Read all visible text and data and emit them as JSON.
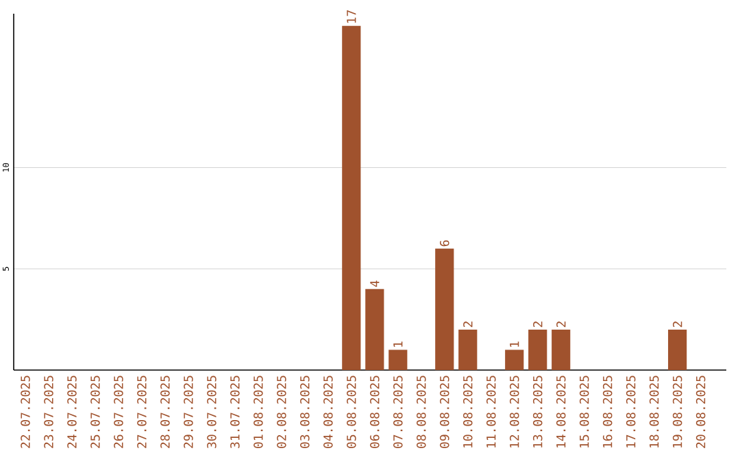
{
  "chart_data": {
    "type": "bar",
    "categories": [
      "22.07.2025",
      "23.07.2025",
      "24.07.2025",
      "25.07.2025",
      "26.07.2025",
      "27.07.2025",
      "28.07.2025",
      "29.07.2025",
      "30.07.2025",
      "31.07.2025",
      "01.08.2025",
      "02.08.2025",
      "03.08.2025",
      "04.08.2025",
      "05.08.2025",
      "06.08.2025",
      "07.08.2025",
      "08.08.2025",
      "09.08.2025",
      "10.08.2025",
      "11.08.2025",
      "12.08.2025",
      "13.08.2025",
      "14.08.2025",
      "15.08.2025",
      "16.08.2025",
      "17.08.2025",
      "18.08.2025",
      "19.08.2025",
      "20.08.2025"
    ],
    "values": [
      0,
      0,
      0,
      0,
      0,
      0,
      0,
      0,
      0,
      0,
      0,
      0,
      0,
      0,
      17,
      4,
      1,
      0,
      6,
      2,
      0,
      1,
      2,
      2,
      0,
      0,
      0,
      0,
      2,
      0
    ],
    "value_labels": [
      null,
      null,
      null,
      null,
      null,
      null,
      null,
      null,
      null,
      null,
      null,
      null,
      null,
      null,
      "17",
      "4",
      "1",
      null,
      "6",
      "2",
      null,
      "1",
      "2",
      "2",
      null,
      null,
      null,
      null,
      "2",
      null
    ],
    "color": "#a0522d",
    "ylim": [
      0,
      17.6
    ],
    "yticks": [
      5,
      10
    ],
    "grid": "y"
  }
}
